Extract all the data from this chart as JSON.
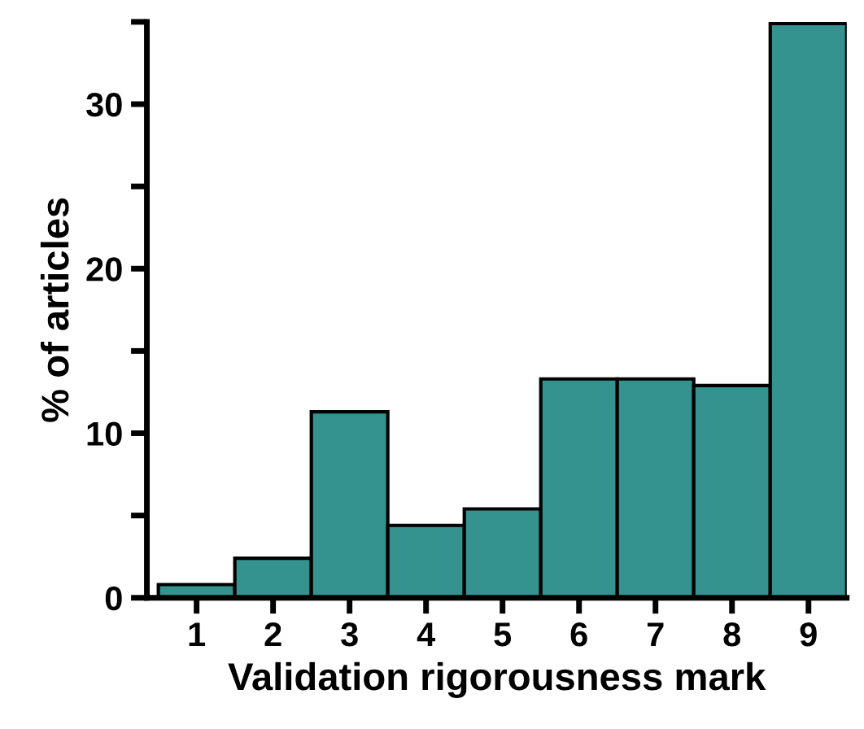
{
  "chart_data": {
    "type": "bar",
    "xlabel": "Validation rigorousness mark",
    "ylabel": "% of articles",
    "categories": [
      "1",
      "2",
      "3",
      "4",
      "5",
      "6",
      "7",
      "8",
      "9"
    ],
    "values": [
      0.8,
      2.4,
      11.3,
      4.4,
      5.4,
      13.3,
      13.3,
      12.9,
      34.9
    ],
    "color": "#34938f",
    "ylim": [
      0,
      35
    ],
    "yticks": [
      0,
      {
        "value": 5,
        "label": null
      },
      10,
      {
        "value": 15,
        "label": null
      },
      20,
      {
        "value": 25,
        "label": null
      },
      30,
      {
        "value": 35,
        "label": null
      }
    ],
    "grid": false,
    "legend": false
  }
}
